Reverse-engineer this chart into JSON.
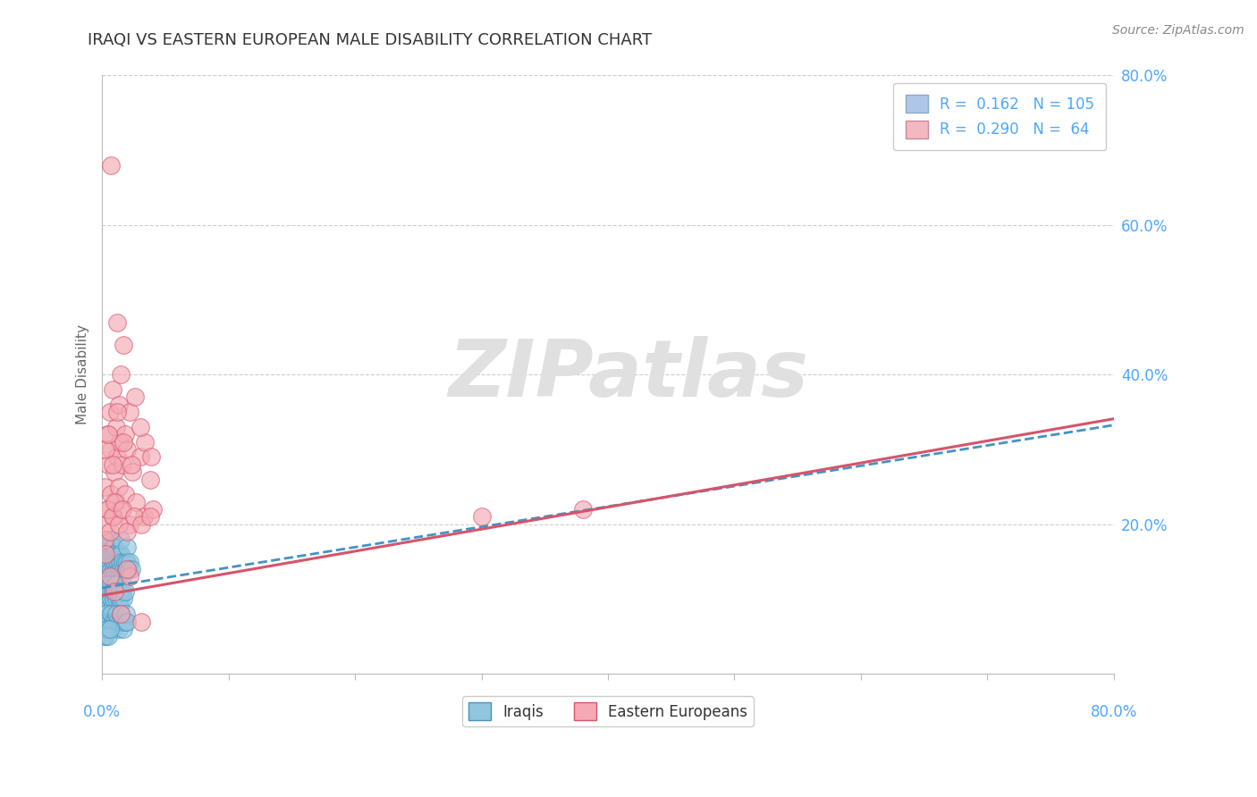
{
  "title": "IRAQI VS EASTERN EUROPEAN MALE DISABILITY CORRELATION CHART",
  "source": "Source: ZipAtlas.com",
  "ylabel": "Male Disability",
  "xlim": [
    0.0,
    0.8
  ],
  "ylim": [
    0.0,
    0.8
  ],
  "yticks": [
    0.0,
    0.2,
    0.4,
    0.6,
    0.8
  ],
  "ytick_labels": [
    "",
    "20.0%",
    "40.0%",
    "60.0%",
    "80.0%"
  ],
  "watermark_text": "ZIPatlas",
  "iraqis": {
    "scatter_color": "#92c5de",
    "edge_color": "#4393c3",
    "line_color": "#4393c3",
    "line_style": "--",
    "R": 0.162,
    "N": 105,
    "x": [
      0.001,
      0.001,
      0.002,
      0.002,
      0.002,
      0.003,
      0.003,
      0.003,
      0.004,
      0.004,
      0.004,
      0.005,
      0.005,
      0.005,
      0.005,
      0.006,
      0.006,
      0.006,
      0.007,
      0.007,
      0.007,
      0.008,
      0.008,
      0.008,
      0.009,
      0.009,
      0.01,
      0.01,
      0.01,
      0.011,
      0.011,
      0.012,
      0.012,
      0.013,
      0.013,
      0.014,
      0.014,
      0.015,
      0.015,
      0.015,
      0.016,
      0.016,
      0.017,
      0.018,
      0.019,
      0.02,
      0.02,
      0.021,
      0.022,
      0.023,
      0.001,
      0.001,
      0.001,
      0.002,
      0.002,
      0.003,
      0.003,
      0.004,
      0.004,
      0.005,
      0.005,
      0.006,
      0.006,
      0.007,
      0.007,
      0.008,
      0.008,
      0.009,
      0.01,
      0.01,
      0.011,
      0.011,
      0.012,
      0.013,
      0.014,
      0.014,
      0.015,
      0.016,
      0.017,
      0.018,
      0.001,
      0.002,
      0.003,
      0.004,
      0.005,
      0.006,
      0.007,
      0.008,
      0.009,
      0.01,
      0.011,
      0.012,
      0.013,
      0.014,
      0.015,
      0.016,
      0.017,
      0.018,
      0.019,
      0.02,
      0.002,
      0.003,
      0.004,
      0.005,
      0.006
    ],
    "y": [
      0.14,
      0.16,
      0.13,
      0.15,
      0.17,
      0.14,
      0.16,
      0.18,
      0.13,
      0.15,
      0.17,
      0.12,
      0.14,
      0.16,
      0.18,
      0.13,
      0.15,
      0.17,
      0.14,
      0.16,
      0.18,
      0.13,
      0.15,
      0.17,
      0.14,
      0.16,
      0.13,
      0.15,
      0.17,
      0.14,
      0.16,
      0.13,
      0.15,
      0.14,
      0.16,
      0.13,
      0.15,
      0.14,
      0.16,
      0.18,
      0.13,
      0.15,
      0.14,
      0.15,
      0.14,
      0.15,
      0.17,
      0.14,
      0.15,
      0.14,
      0.1,
      0.12,
      0.08,
      0.11,
      0.09,
      0.1,
      0.12,
      0.11,
      0.09,
      0.1,
      0.12,
      0.11,
      0.09,
      0.1,
      0.12,
      0.11,
      0.09,
      0.1,
      0.12,
      0.11,
      0.1,
      0.12,
      0.11,
      0.1,
      0.11,
      0.09,
      0.1,
      0.11,
      0.1,
      0.11,
      0.06,
      0.07,
      0.08,
      0.07,
      0.06,
      0.07,
      0.08,
      0.07,
      0.06,
      0.07,
      0.08,
      0.07,
      0.06,
      0.07,
      0.08,
      0.07,
      0.06,
      0.07,
      0.08,
      0.07,
      0.05,
      0.05,
      0.06,
      0.05,
      0.06
    ]
  },
  "eastern_europeans": {
    "scatter_color": "#f4a9b5",
    "edge_color": "#d6546a",
    "line_color": "#d6546a",
    "line_style": "-",
    "R": 0.29,
    "N": 64,
    "x": [
      0.002,
      0.004,
      0.005,
      0.006,
      0.007,
      0.008,
      0.01,
      0.011,
      0.012,
      0.013,
      0.014,
      0.015,
      0.016,
      0.017,
      0.018,
      0.02,
      0.022,
      0.024,
      0.026,
      0.03,
      0.034,
      0.038,
      0.003,
      0.005,
      0.007,
      0.009,
      0.011,
      0.013,
      0.015,
      0.018,
      0.022,
      0.027,
      0.033,
      0.04,
      0.002,
      0.004,
      0.006,
      0.008,
      0.01,
      0.013,
      0.016,
      0.02,
      0.025,
      0.031,
      0.038,
      0.003,
      0.005,
      0.008,
      0.012,
      0.017,
      0.023,
      0.03,
      0.039,
      0.3,
      0.38,
      0.003,
      0.006,
      0.01,
      0.015,
      0.022,
      0.007,
      0.012,
      0.02,
      0.031
    ],
    "y": [
      0.25,
      0.32,
      0.28,
      0.35,
      0.3,
      0.38,
      0.27,
      0.33,
      0.29,
      0.36,
      0.31,
      0.4,
      0.28,
      0.44,
      0.32,
      0.3,
      0.35,
      0.27,
      0.37,
      0.29,
      0.31,
      0.26,
      0.2,
      0.22,
      0.24,
      0.21,
      0.23,
      0.25,
      0.22,
      0.24,
      0.2,
      0.23,
      0.21,
      0.22,
      0.18,
      0.22,
      0.19,
      0.21,
      0.23,
      0.2,
      0.22,
      0.19,
      0.21,
      0.2,
      0.21,
      0.3,
      0.32,
      0.28,
      0.35,
      0.31,
      0.28,
      0.33,
      0.29,
      0.21,
      0.22,
      0.16,
      0.13,
      0.11,
      0.08,
      0.13,
      0.68,
      0.47,
      0.14,
      0.07
    ]
  },
  "line_intercept_iraqi": 0.115,
  "line_slope_iraqi": 0.272,
  "line_intercept_ee": 0.105,
  "line_slope_ee": 0.295,
  "title_color": "#333333",
  "title_fontsize": 13,
  "source_color": "#888888",
  "source_fontsize": 10,
  "grid_color": "#cccccc",
  "background_color": "#ffffff",
  "watermark_color": "#e0e0e0",
  "legend_box_color": "#aec6e8",
  "legend_box_color2": "#f4b8c1",
  "tick_color": "#4da6ff"
}
